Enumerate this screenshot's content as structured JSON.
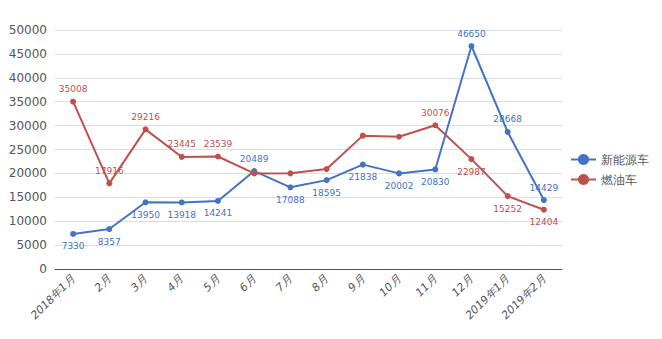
{
  "chart_data": {
    "type": "line",
    "categories": [
      "2018年1月",
      "2月",
      "3月",
      "4月",
      "5月",
      "6月",
      "7月",
      "8月",
      "9月",
      "10月",
      "11月",
      "12月",
      "2019年1月",
      "2019年2月"
    ],
    "series": [
      {
        "name": "新能源车",
        "color": "#4472C4",
        "marker": "circle",
        "values": [
          7330,
          8357,
          13950,
          13918,
          14241,
          20489,
          17088,
          18595,
          21838,
          20002,
          20830,
          46650,
          28668,
          14429
        ]
      },
      {
        "name": "燃油车",
        "color": "#C0504D",
        "marker": "circle",
        "values": [
          35008,
          17916,
          29216,
          23445,
          23539,
          20000,
          20010,
          20906,
          27902,
          27667,
          30076,
          22987,
          15252,
          12404
        ],
        "value_labels": [
          "35008",
          "17916",
          "29216",
          "23445",
          "23539",
          null,
          null,
          null,
          null,
          null,
          "30076",
          "22987",
          "15252",
          "12404"
        ]
      }
    ],
    "ylim": [
      0,
      50000
    ],
    "yticks": [
      0,
      5000,
      10000,
      15000,
      20000,
      25000,
      30000,
      35000,
      40000,
      45000,
      50000
    ],
    "grid": true,
    "legend": "right",
    "data_labels": true
  }
}
